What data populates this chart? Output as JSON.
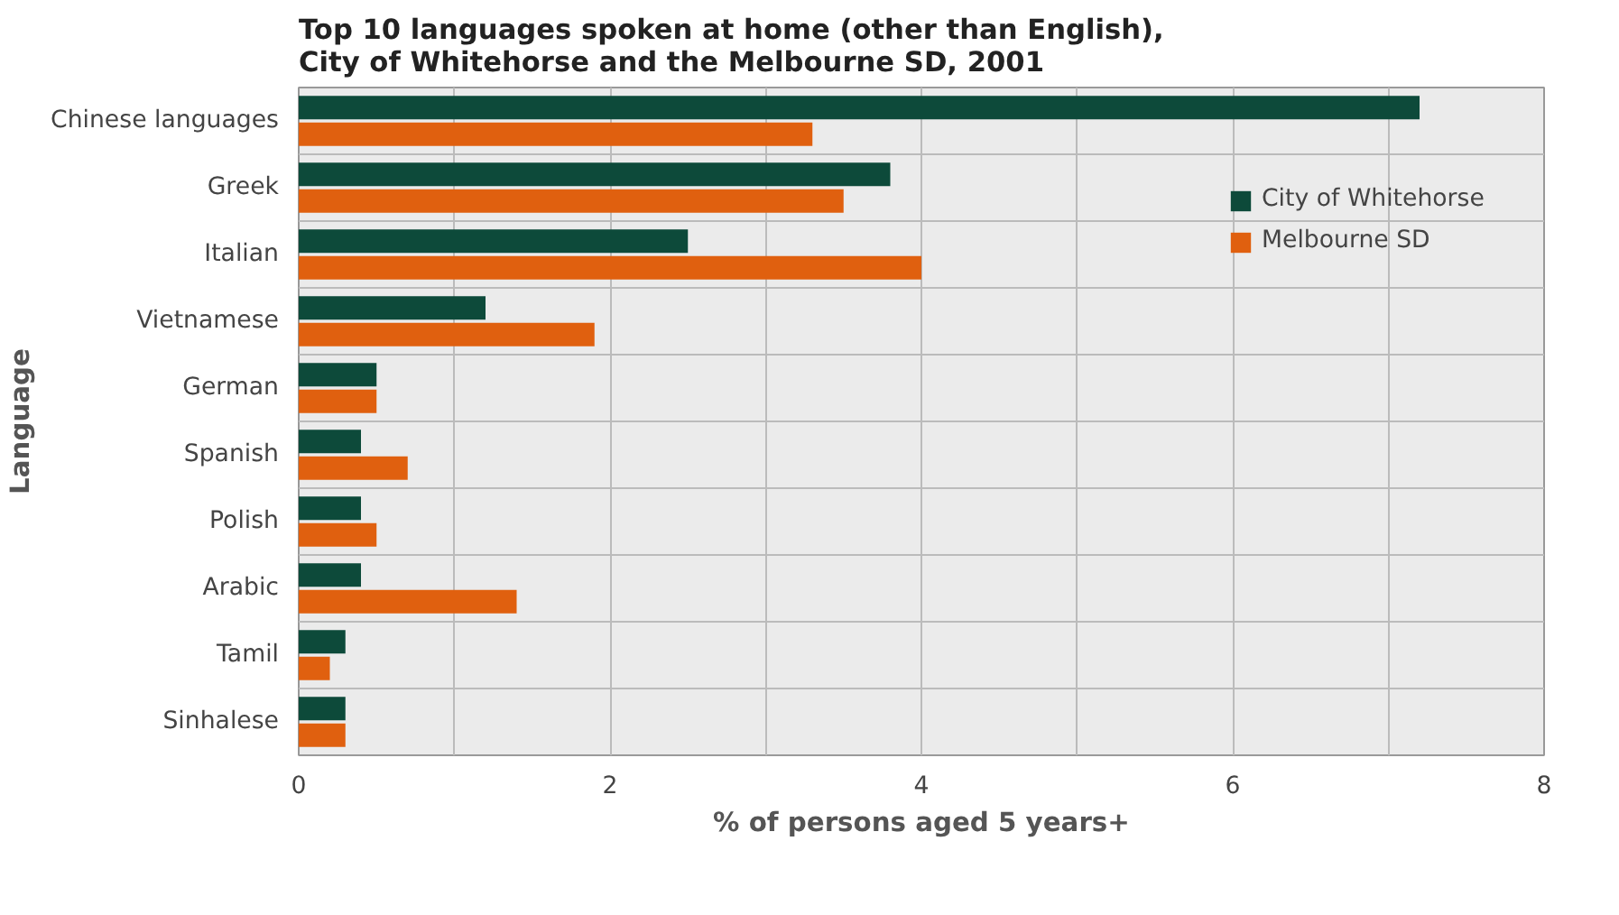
{
  "chart_data": {
    "type": "bar",
    "orientation": "horizontal",
    "title": "Top 10 languages spoken at home (other than English),\nCity of Whitehorse and the Melbourne SD, 2001",
    "xlabel": "% of persons aged 5 years+",
    "ylabel": "Language",
    "categories": [
      "Chinese languages",
      "Greek",
      "Italian",
      "Vietnamese",
      "German",
      "Spanish",
      "Polish",
      "Arabic",
      "Tamil",
      "Sinhalese"
    ],
    "series": [
      {
        "name": "City of Whitehorse",
        "color": "#0d4a3a",
        "values": [
          7.2,
          3.8,
          2.5,
          1.2,
          0.5,
          0.4,
          0.4,
          0.4,
          0.3,
          0.3
        ]
      },
      {
        "name": "Melbourne SD",
        "color": "#e0600f",
        "values": [
          3.3,
          3.5,
          4.0,
          1.9,
          0.5,
          0.7,
          0.5,
          1.4,
          0.2,
          0.3
        ]
      }
    ],
    "xlim": [
      0,
      8
    ],
    "xticks": [
      0,
      {
        "value": 1,
        "label": null
      },
      2,
      {
        "value": 3,
        "label": null
      },
      4,
      {
        "value": 5,
        "label": null
      },
      6,
      {
        "value": 7,
        "label": null
      },
      8
    ],
    "grid": true,
    "legend": "top right"
  }
}
